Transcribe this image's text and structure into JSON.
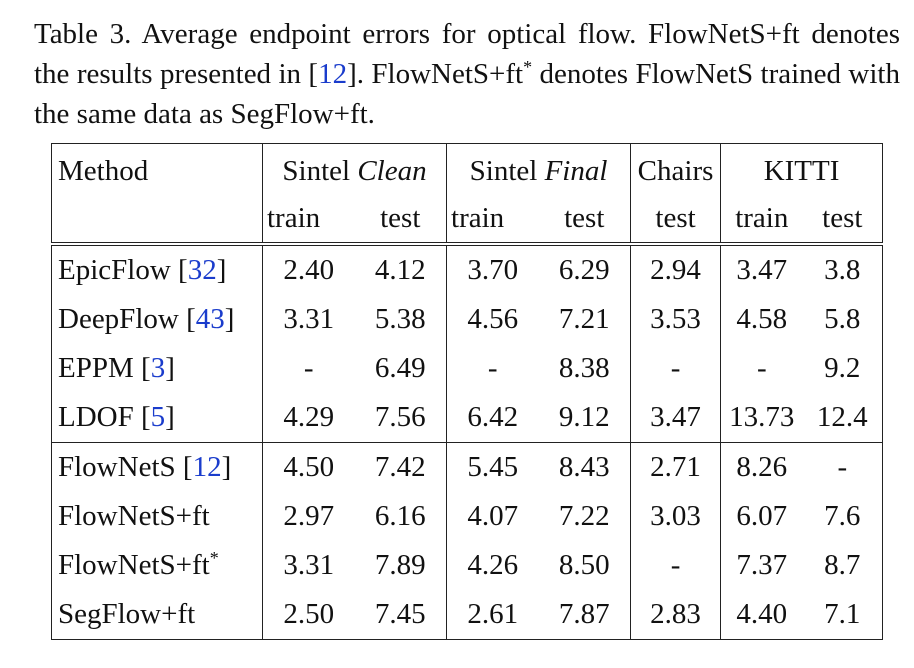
{
  "caption": {
    "lead": "Table 3. Average endpoint errors for optical flow.  FlowNetS+ft denotes the results presented in [",
    "ref1": "12",
    "mid": "].  FlowNetS+ft",
    "star": "*",
    "tail": " denotes FlowNetS trained with the same data as SegFlow+ft."
  },
  "table": {
    "headers": {
      "method": "Method",
      "sintel": "Sintel",
      "clean": "Clean",
      "final": "Final",
      "chairs": "Chairs",
      "kitti": "KITTI",
      "train": "train",
      "test": "test"
    },
    "rows": [
      {
        "name": "EpicFlow ",
        "ref": "32",
        "close": "]",
        "open": "[",
        "sup": "",
        "vals": [
          "2.40",
          "4.12",
          "3.70",
          "6.29",
          "2.94",
          "3.47",
          "3.8"
        ]
      },
      {
        "name": "DeepFlow ",
        "ref": "43",
        "close": "]",
        "open": "[",
        "sup": "",
        "vals": [
          "3.31",
          "5.38",
          "4.56",
          "7.21",
          "3.53",
          "4.58",
          "5.8"
        ]
      },
      {
        "name": "EPPM ",
        "ref": "3",
        "close": "]",
        "open": "[",
        "sup": "",
        "vals": [
          "-",
          "6.49",
          "-",
          "8.38",
          "-",
          "-",
          "9.2"
        ]
      },
      {
        "name": "LDOF ",
        "ref": "5",
        "close": "]",
        "open": "[",
        "sup": "",
        "vals": [
          "4.29",
          "7.56",
          "6.42",
          "9.12",
          "3.47",
          "13.73",
          "12.4"
        ]
      },
      {
        "name": "FlowNetS ",
        "ref": "12",
        "close": "]",
        "open": "[",
        "sup": "",
        "vals": [
          "4.50",
          "7.42",
          "5.45",
          "8.43",
          "2.71",
          "8.26",
          "-"
        ]
      },
      {
        "name": "FlowNetS+ft",
        "ref": "",
        "close": "",
        "open": "",
        "sup": "",
        "vals": [
          "2.97",
          "6.16",
          "4.07",
          "7.22",
          "3.03",
          "6.07",
          "7.6"
        ]
      },
      {
        "name": "FlowNetS+ft",
        "ref": "",
        "close": "",
        "open": "",
        "sup": "*",
        "vals": [
          "3.31",
          "7.89",
          "4.26",
          "8.50",
          "-",
          "7.37",
          "8.7"
        ]
      },
      {
        "name": "SegFlow+ft",
        "ref": "",
        "close": "",
        "open": "",
        "sup": "",
        "vals": [
          "2.50",
          "7.45",
          "2.61",
          "7.87",
          "2.83",
          "4.40",
          "7.1"
        ]
      }
    ]
  }
}
